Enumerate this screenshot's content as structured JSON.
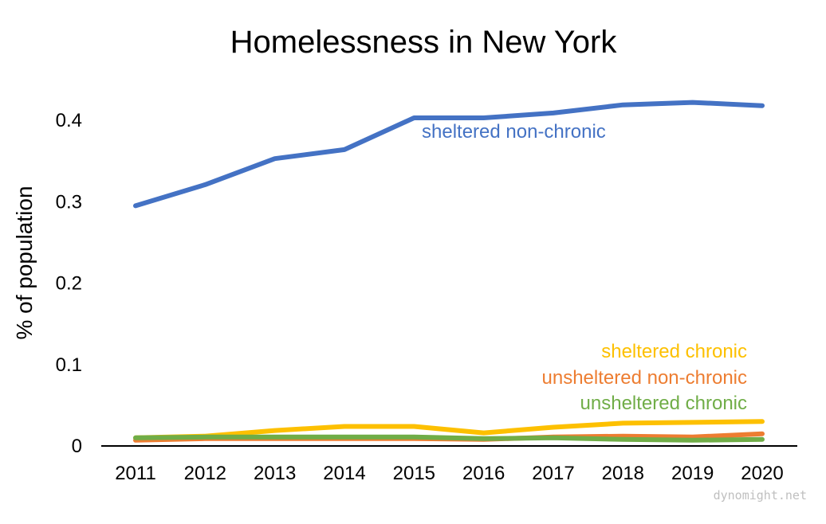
{
  "chart_data": {
    "type": "line",
    "title": "Homelessness in New York",
    "xlabel": "",
    "ylabel": "% of population",
    "x": [
      "2011",
      "2012",
      "2013",
      "2014",
      "2015",
      "2016",
      "2017",
      "2018",
      "2019",
      "2020"
    ],
    "ylim": [
      0,
      0.45
    ],
    "yticks": [
      {
        "value": 0,
        "label": "0"
      },
      {
        "value": 0.1,
        "label": "0.1"
      },
      {
        "value": 0.2,
        "label": "0.2"
      },
      {
        "value": 0.3,
        "label": "0.3"
      },
      {
        "value": 0.4,
        "label": "0.4"
      }
    ],
    "grid": false,
    "legend": "none",
    "series": [
      {
        "name": "sheltered non-chronic",
        "color": "#4472c4",
        "values": [
          0.295,
          0.321,
          0.353,
          0.364,
          0.403,
          0.403,
          0.409,
          0.419,
          0.422,
          0.418
        ]
      },
      {
        "name": "sheltered chronic",
        "color": "#fdc000",
        "values": [
          0.01,
          0.012,
          0.019,
          0.024,
          0.024,
          0.016,
          0.023,
          0.028,
          0.029,
          0.03
        ]
      },
      {
        "name": "unsheltered non-chronic",
        "color": "#ed7d31",
        "values": [
          0.007,
          0.009,
          0.009,
          0.009,
          0.009,
          0.008,
          0.011,
          0.012,
          0.011,
          0.015
        ]
      },
      {
        "name": "unsheltered chronic",
        "color": "#70ad47",
        "values": [
          0.01,
          0.011,
          0.011,
          0.011,
          0.011,
          0.009,
          0.01,
          0.008,
          0.007,
          0.008
        ]
      }
    ],
    "annotations": {
      "source": "dynomight.net"
    }
  }
}
